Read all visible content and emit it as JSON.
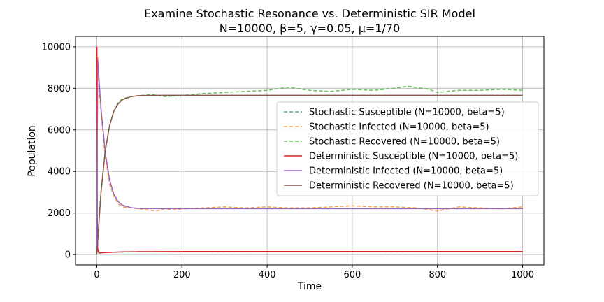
{
  "chart_data": {
    "type": "line",
    "title": "Examine Stochastic Resonance vs. Deterministic SIR Model",
    "subtitle": "N=10000, β=5, γ=0.05, μ=1/70",
    "xlabel": "Time",
    "ylabel": "Population",
    "xlim": [
      -50,
      1050
    ],
    "ylim": [
      -500,
      10500
    ],
    "xticks": [
      0,
      200,
      400,
      600,
      800,
      1000
    ],
    "yticks": [
      0,
      2000,
      4000,
      6000,
      8000,
      10000
    ],
    "grid": true,
    "legend_position": "center-right",
    "series": [
      {
        "name": "Stochastic Susceptible (N=10000, beta=5)",
        "style": "dashed",
        "color": "#5f9ea0",
        "points": [
          [
            0,
            10000
          ],
          [
            1,
            400
          ],
          [
            3,
            60
          ],
          [
            10,
            80
          ],
          [
            30,
            110
          ],
          [
            100,
            140
          ],
          [
            200,
            145
          ],
          [
            300,
            140
          ],
          [
            400,
            150
          ],
          [
            500,
            145
          ],
          [
            600,
            150
          ],
          [
            700,
            140
          ],
          [
            800,
            145
          ],
          [
            900,
            150
          ],
          [
            1000,
            145
          ]
        ]
      },
      {
        "name": "Stochastic Infected (N=10000, beta=5)",
        "style": "dashed",
        "color": "#ff9e4a",
        "points": [
          [
            0,
            0
          ],
          [
            2,
            9500
          ],
          [
            5,
            8300
          ],
          [
            10,
            6800
          ],
          [
            20,
            4700
          ],
          [
            30,
            3400
          ],
          [
            40,
            2800
          ],
          [
            50,
            2450
          ],
          [
            60,
            2300
          ],
          [
            80,
            2250
          ],
          [
            100,
            2200
          ],
          [
            120,
            2150
          ],
          [
            140,
            2100
          ],
          [
            160,
            2200
          ],
          [
            180,
            2150
          ],
          [
            200,
            2200
          ],
          [
            250,
            2250
          ],
          [
            300,
            2300
          ],
          [
            350,
            2250
          ],
          [
            400,
            2300
          ],
          [
            450,
            2250
          ],
          [
            500,
            2250
          ],
          [
            550,
            2300
          ],
          [
            600,
            2350
          ],
          [
            650,
            2300
          ],
          [
            700,
            2300
          ],
          [
            750,
            2250
          ],
          [
            800,
            2100
          ],
          [
            850,
            2300
          ],
          [
            900,
            2250
          ],
          [
            950,
            2200
          ],
          [
            1000,
            2300
          ]
        ]
      },
      {
        "name": "Stochastic Recovered (N=10000, beta=5)",
        "style": "dashed",
        "color": "#67bf5c",
        "points": [
          [
            0,
            0
          ],
          [
            5,
            1600
          ],
          [
            10,
            3100
          ],
          [
            20,
            5000
          ],
          [
            30,
            6200
          ],
          [
            40,
            6900
          ],
          [
            50,
            7300
          ],
          [
            60,
            7500
          ],
          [
            80,
            7600
          ],
          [
            100,
            7650
          ],
          [
            130,
            7700
          ],
          [
            160,
            7600
          ],
          [
            200,
            7650
          ],
          [
            250,
            7750
          ],
          [
            300,
            7800
          ],
          [
            350,
            7850
          ],
          [
            400,
            7900
          ],
          [
            450,
            8050
          ],
          [
            500,
            7900
          ],
          [
            550,
            7850
          ],
          [
            600,
            7950
          ],
          [
            650,
            7900
          ],
          [
            700,
            8000
          ],
          [
            730,
            8100
          ],
          [
            780,
            7950
          ],
          [
            800,
            7800
          ],
          [
            850,
            7900
          ],
          [
            900,
            7900
          ],
          [
            950,
            7950
          ],
          [
            1000,
            7900
          ]
        ]
      },
      {
        "name": "Deterministic Susceptible (N=10000, beta=5)",
        "style": "solid",
        "color": "#d62728",
        "points": [
          [
            0,
            10000
          ],
          [
            1,
            2000
          ],
          [
            2,
            300
          ],
          [
            5,
            80
          ],
          [
            20,
            100
          ],
          [
            60,
            130
          ],
          [
            100,
            140
          ],
          [
            200,
            145
          ],
          [
            1000,
            145
          ]
        ]
      },
      {
        "name": "Deterministic Infected (N=10000, beta=5)",
        "style": "solid",
        "color": "#9467bd",
        "points": [
          [
            0,
            0
          ],
          [
            2,
            9400
          ],
          [
            5,
            8500
          ],
          [
            10,
            7000
          ],
          [
            20,
            4900
          ],
          [
            30,
            3600
          ],
          [
            40,
            2900
          ],
          [
            50,
            2550
          ],
          [
            60,
            2380
          ],
          [
            80,
            2260
          ],
          [
            100,
            2220
          ],
          [
            150,
            2210
          ],
          [
            1000,
            2210
          ]
        ]
      },
      {
        "name": "Deterministic Recovered (N=10000, beta=5)",
        "style": "solid",
        "color": "#8c564b",
        "points": [
          [
            0,
            0
          ],
          [
            5,
            1500
          ],
          [
            10,
            3000
          ],
          [
            20,
            5000
          ],
          [
            30,
            6200
          ],
          [
            40,
            6900
          ],
          [
            50,
            7250
          ],
          [
            60,
            7450
          ],
          [
            80,
            7600
          ],
          [
            100,
            7650
          ],
          [
            150,
            7660
          ],
          [
            1000,
            7660
          ]
        ]
      }
    ]
  }
}
